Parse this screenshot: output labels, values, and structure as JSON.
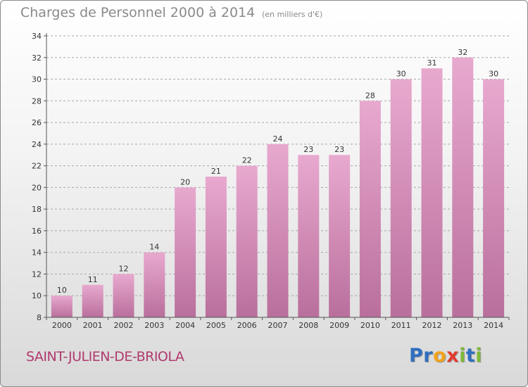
{
  "chart_data": {
    "type": "bar",
    "title": "Charges de Personnel 2000 à 2014",
    "subtitle": "(en milliers d'€)",
    "categories": [
      "2000",
      "2001",
      "2002",
      "2003",
      "2004",
      "2005",
      "2006",
      "2007",
      "2008",
      "2009",
      "2010",
      "2011",
      "2012",
      "2013",
      "2014"
    ],
    "values": [
      10,
      11,
      12,
      14,
      20,
      21,
      22,
      24,
      23,
      23,
      28,
      30,
      31,
      32,
      30
    ],
    "ylim": [
      8,
      34
    ],
    "yticks": [
      "8",
      "10",
      "12",
      "14",
      "16",
      "18",
      "20",
      "22",
      "24",
      "26",
      "28",
      "30",
      "32",
      "34"
    ],
    "xlabel": "",
    "ylabel": "",
    "grid": true,
    "bar_color_top": "#e8a9cf",
    "bar_color_bottom": "#b96f9c"
  },
  "footer": {
    "place_name": "SAINT-JULIEN-DE-BRIOLA",
    "place_color": "#b03a6e",
    "logo_letters": [
      {
        "char": "P",
        "color": "#2f6fc0"
      },
      {
        "char": "r",
        "color": "#2f6fc0"
      },
      {
        "char": "o",
        "color": "#f2a21b"
      },
      {
        "char": "x",
        "color": "#e23b2e"
      },
      {
        "char": "i",
        "color": "#7fb83a"
      },
      {
        "char": "t",
        "color": "#2f6fc0"
      },
      {
        "char": "i",
        "color": "#7fb83a"
      }
    ]
  }
}
